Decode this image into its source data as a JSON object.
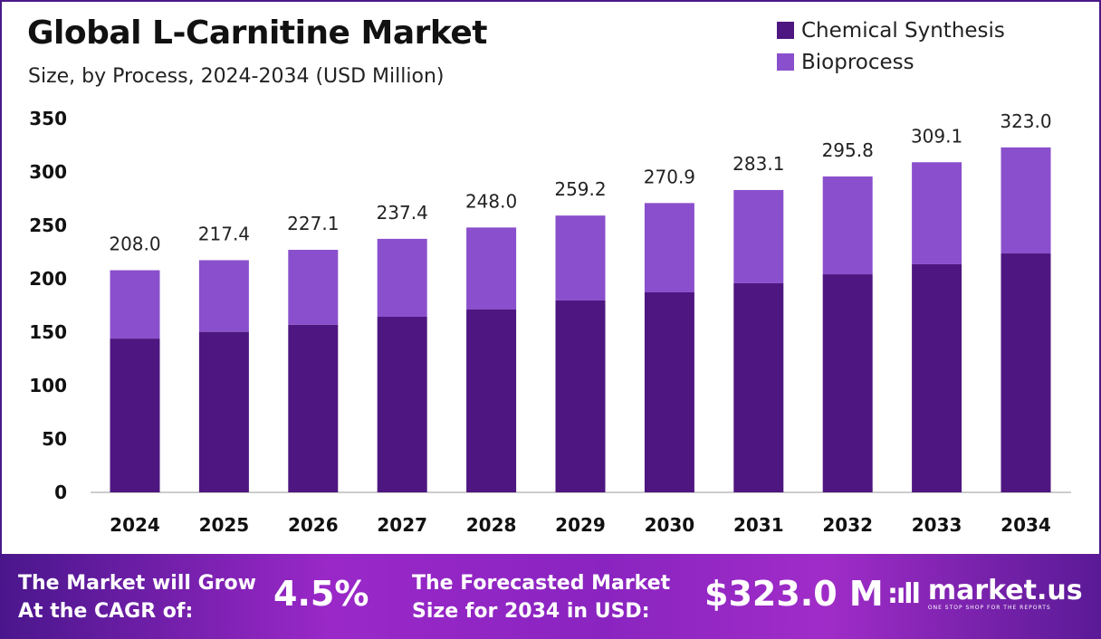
{
  "header": {
    "title": "Global L-Carnitine Market",
    "subtitle": "Size, by Process, 2024-2034 (USD Million)"
  },
  "chart_data": {
    "type": "bar",
    "stacked": true,
    "title": "Global L-Carnitine Market",
    "subtitle": "Size, by Process, 2024-2034 (USD Million)",
    "categories": [
      "2024",
      "2025",
      "2026",
      "2027",
      "2028",
      "2029",
      "2030",
      "2031",
      "2032",
      "2033",
      "2034"
    ],
    "series": [
      {
        "name": "Chemical Synthesis",
        "color": "#4e1680",
        "values": [
          144.0,
          150.3,
          157.0,
          164.4,
          171.2,
          179.7,
          187.3,
          195.8,
          204.2,
          213.6,
          223.7
        ]
      },
      {
        "name": "Bioprocess",
        "color": "#8a4fcc",
        "values": [
          64.0,
          67.1,
          70.1,
          73.0,
          76.8,
          79.5,
          83.6,
          87.3,
          91.6,
          95.5,
          99.3
        ]
      }
    ],
    "totals": [
      "208.0",
      "217.4",
      "227.1",
      "237.4",
      "248.0",
      "259.2",
      "270.9",
      "283.1",
      "295.8",
      "309.1",
      "323.0"
    ],
    "yticks": [
      "0",
      "50",
      "100",
      "150",
      "200",
      "250",
      "300",
      "350"
    ],
    "ylim": [
      0,
      350
    ],
    "grid": false,
    "legend": "top-right"
  },
  "footer": {
    "cagr_label_1": "The Market will Grow",
    "cagr_label_2": "At the CAGR of:",
    "cagr_value": "4.5%",
    "forecast_label_1": "The Forecasted Market",
    "forecast_label_2": "Size for 2034 in USD:",
    "forecast_value": "$323.0 M",
    "brand": "market.us",
    "brand_tagline": "ONE STOP SHOP FOR THE REPORTS"
  }
}
